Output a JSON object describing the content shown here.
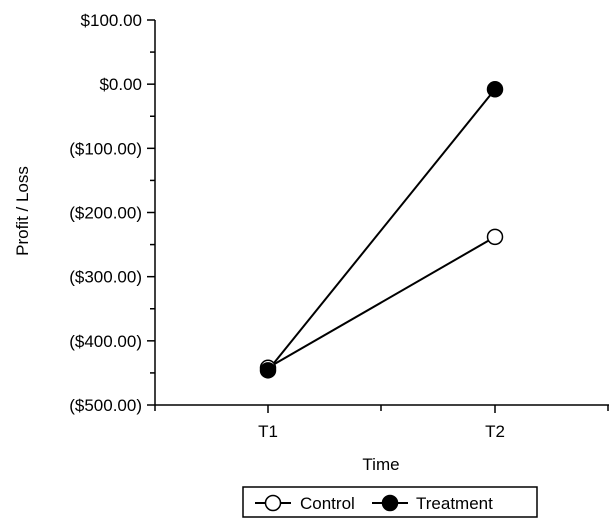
{
  "chart_data": {
    "type": "line",
    "xlabel": "Time",
    "ylabel": "Profit / Loss",
    "categories": [
      "T1",
      "T2"
    ],
    "y_tick_labels": [
      "$100.00",
      "$0.00",
      "($100.00)",
      "($200.00)",
      "($300.00)",
      "($400.00)",
      "($500.00)"
    ],
    "y_tick_values": [
      100,
      0,
      -100,
      -200,
      -300,
      -400,
      -500
    ],
    "ylim": [
      -500,
      100
    ],
    "grid": false,
    "legend_position": "bottom",
    "series": [
      {
        "name": "Control",
        "marker": "open-circle",
        "values": [
          -442,
          -238
        ]
      },
      {
        "name": "Treatment",
        "marker": "filled-circle",
        "values": [
          -446,
          -8
        ]
      }
    ]
  }
}
